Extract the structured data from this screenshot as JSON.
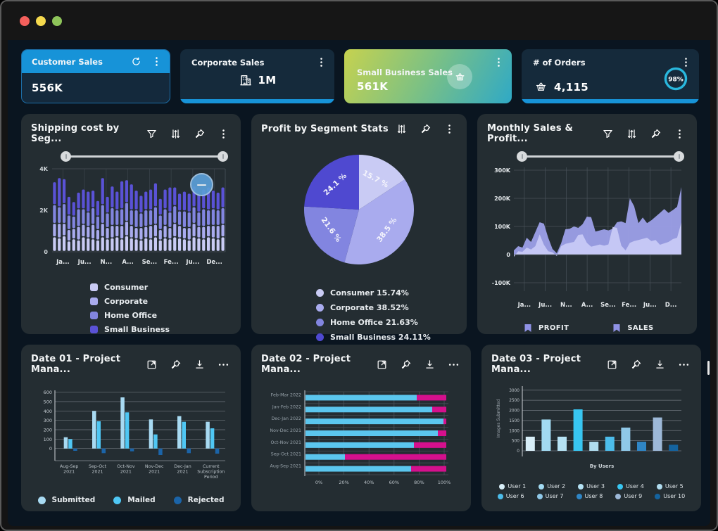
{
  "window": {
    "traffic_lights": [
      {
        "name": "close",
        "color": "#f4605c"
      },
      {
        "name": "minimize",
        "color": "#f5d94d"
      },
      {
        "name": "zoom",
        "color": "#8ec45a"
      }
    ],
    "background": "#0a1520",
    "accent_blue": "#1793d8"
  },
  "kpi": {
    "cards": [
      {
        "title": "Customer Sales",
        "value": "556K",
        "icons": [
          "recycle",
          "kebab"
        ]
      },
      {
        "title": "Corporate Sales",
        "value": "1M",
        "icons": [
          "building",
          "kebab"
        ]
      },
      {
        "title": "Small Business Sales",
        "value": "561K",
        "icons": [
          "basket",
          "kebab"
        ]
      },
      {
        "title": "# of Orders",
        "value": "4,115",
        "icons": [
          "basket",
          "kebab"
        ],
        "gauge_pct": "98%"
      }
    ]
  },
  "panels": [
    {
      "title": "Shipping cost by Seg...",
      "icons": [
        "filter",
        "sliders",
        "pin",
        "kebab"
      ],
      "has_slider": true,
      "overlay_button": "−"
    },
    {
      "title": "Profit by Segment Stats",
      "icons": [
        "sliders",
        "pin",
        "kebab"
      ],
      "has_slider": false
    },
    {
      "title": "Monthly Sales & Profit...",
      "icons": [
        "filter",
        "sliders",
        "pin",
        "kebab"
      ],
      "has_slider": true
    },
    {
      "title": "Date 01 - Project Mana...",
      "icons": [
        "expand",
        "pin",
        "download",
        "ellipsis"
      ],
      "has_slider": false
    },
    {
      "title": "Date 02 - Project Mana...",
      "icons": [
        "expand",
        "pin",
        "download",
        "ellipsis"
      ],
      "has_slider": false
    },
    {
      "title": "Date 03 - Project Mana...",
      "icons": [
        "expand",
        "pin",
        "download",
        "ellipsis"
      ],
      "has_slider": false
    }
  ],
  "chart_data": [
    {
      "id": "shipping",
      "type": "bar",
      "stacked": true,
      "title": "Shipping cost by Segment",
      "y_ticks": [
        {
          "label": "4K",
          "v": 4000
        },
        {
          "label": "2K",
          "v": 2000
        },
        {
          "label": "0",
          "v": 0
        }
      ],
      "ylim": [
        0,
        4000
      ],
      "x_labels": [
        "Ja...",
        "Ju...",
        "N...",
        "A...",
        "Se...",
        "Fe...",
        "Ju...",
        "De..."
      ],
      "series_names": [
        "Consumer",
        "Corporate",
        "Home Office",
        "Small Business"
      ],
      "colors": [
        "#c9cbf4",
        "#a9abee",
        "#8285e0",
        "#5a52d6"
      ],
      "bars": [
        [
          700,
          650,
          900,
          1100
        ],
        [
          650,
          700,
          800,
          1400
        ],
        [
          750,
          600,
          950,
          1200
        ],
        [
          500,
          550,
          700,
          900
        ],
        [
          600,
          500,
          600,
          700
        ],
        [
          550,
          650,
          850,
          800
        ],
        [
          700,
          600,
          750,
          950
        ],
        [
          650,
          550,
          700,
          1000
        ],
        [
          600,
          700,
          800,
          850
        ],
        [
          550,
          500,
          650,
          750
        ],
        [
          700,
          650,
          900,
          1300
        ],
        [
          600,
          550,
          700,
          800
        ],
        [
          650,
          600,
          850,
          1050
        ],
        [
          700,
          550,
          750,
          900
        ],
        [
          600,
          650,
          800,
          1350
        ],
        [
          750,
          700,
          900,
          1100
        ],
        [
          650,
          600,
          750,
          1250
        ],
        [
          600,
          550,
          850,
          950
        ],
        [
          550,
          600,
          700,
          850
        ],
        [
          650,
          550,
          800,
          900
        ],
        [
          600,
          650,
          750,
          1000
        ],
        [
          700,
          600,
          850,
          1150
        ],
        [
          550,
          500,
          700,
          800
        ],
        [
          650,
          600,
          800,
          950
        ],
        [
          600,
          550,
          750,
          1200
        ],
        [
          700,
          650,
          850,
          900
        ],
        [
          650,
          600,
          700,
          850
        ],
        [
          600,
          550,
          800,
          950
        ],
        [
          550,
          600,
          750,
          900
        ],
        [
          700,
          650,
          800,
          1000
        ],
        [
          650,
          550,
          700,
          850
        ],
        [
          600,
          600,
          850,
          950
        ],
        [
          700,
          550,
          750,
          1100
        ],
        [
          650,
          600,
          800,
          900
        ],
        [
          600,
          650,
          750,
          850
        ],
        [
          700,
          600,
          800,
          1000
        ]
      ],
      "legend": [
        {
          "label": "Consumer",
          "color": "#c9cbf4"
        },
        {
          "label": "Corporate",
          "color": "#a9abee"
        },
        {
          "label": "Home Office",
          "color": "#8285e0"
        },
        {
          "label": "Small Business",
          "color": "#5a52d6"
        }
      ]
    },
    {
      "id": "profit_pie",
      "type": "pie",
      "title": "Profit by Segment Stats",
      "values": [
        15.74,
        38.52,
        21.63,
        24.11
      ],
      "slice_labels": [
        "15.7 %",
        "38.5 %",
        "21.6 %",
        "24.1 %"
      ],
      "colors": [
        "#c9cbf4",
        "#a9abee",
        "#8285e0",
        "#4f49d0"
      ],
      "legend": [
        {
          "label": "Consumer",
          "value": "15.74%",
          "color": "#c9cbf4"
        },
        {
          "label": "Corporate",
          "value": "38.52%",
          "color": "#a9abee"
        },
        {
          "label": "Home Office",
          "value": "21.63%",
          "color": "#8285e0"
        },
        {
          "label": "Small Business",
          "value": "24.11%",
          "color": "#4f49d0"
        }
      ]
    },
    {
      "id": "monthly",
      "type": "area",
      "title": "Monthly Sales & Profit",
      "y_ticks": [
        {
          "label": "300K",
          "v": 300
        },
        {
          "label": "200K",
          "v": 200
        },
        {
          "label": "100K",
          "v": 100
        },
        {
          "label": "0",
          "v": 0
        },
        {
          "label": "-100K",
          "v": -100
        }
      ],
      "ylim": [
        -130,
        310
      ],
      "x_labels": [
        "Ja...",
        "Ju...",
        "N...",
        "A...",
        "Se...",
        "Fe...",
        "Ju...",
        "D..."
      ],
      "series": [
        {
          "name": "SALES",
          "color": "#9da0e9",
          "values": [
            15,
            30,
            25,
            60,
            45,
            80,
            115,
            110,
            60,
            20,
            5,
            40,
            90,
            92,
            100,
            95,
            108,
            135,
            133,
            82,
            86,
            90,
            86,
            92,
            115,
            118,
            112,
            200,
            172,
            112,
            132,
            112,
            122,
            135,
            148,
            162,
            148,
            158,
            170,
            240
          ]
        },
        {
          "name": "PROFIT",
          "color": "#c7c9f6",
          "values": [
            -8,
            12,
            10,
            25,
            18,
            30,
            72,
            35,
            12,
            8,
            -5,
            30,
            38,
            42,
            45,
            70,
            72,
            42,
            28,
            32,
            36,
            32,
            36,
            98,
            95,
            32,
            15,
            42,
            48,
            52,
            56,
            60,
            48,
            52,
            35,
            40,
            45,
            55,
            60,
            115
          ]
        }
      ],
      "legend": [
        {
          "label": "PROFIT",
          "color": "#8f92e6"
        },
        {
          "label": "SALES",
          "color": "#8f92e6"
        }
      ]
    },
    {
      "id": "date01",
      "type": "bar",
      "grouped": true,
      "title": "Date 01 - Project Management",
      "y_ticks": [
        0,
        100,
        200,
        300,
        400,
        500,
        600
      ],
      "ylim": [
        -100,
        620
      ],
      "categories": [
        [
          "Aug-Sep",
          "2021"
        ],
        [
          "Sep-Oct",
          "2021"
        ],
        [
          "Oct-Nov",
          "2021"
        ],
        [
          "Nov-Dec",
          "2021"
        ],
        [
          "Dec-Jan",
          "2021"
        ],
        [
          "Current",
          "Subscription",
          "Period"
        ]
      ],
      "series": [
        {
          "name": "Submitted",
          "color": "#a8daf2",
          "values": [
            120,
            400,
            545,
            310,
            345,
            285
          ]
        },
        {
          "name": "Mailed",
          "color": "#4fc7f4",
          "values": [
            100,
            290,
            385,
            150,
            285,
            215
          ]
        },
        {
          "name": "Rejected",
          "color": "#1b64a8",
          "values": [
            -25,
            -50,
            -30,
            -70,
            -50,
            -55
          ]
        }
      ],
      "legend": [
        {
          "label": "Submitted",
          "color": "#a8daf2"
        },
        {
          "label": "Mailed",
          "color": "#4fc7f4"
        },
        {
          "label": "Rejected",
          "color": "#1b64a8"
        }
      ]
    },
    {
      "id": "date02",
      "type": "bar",
      "horizontal": true,
      "stacked": true,
      "title": "Date 02 - Project Management",
      "categories": [
        "Feb-Mar 2022",
        "Jan-Feb 2022",
        "Dec-Jan 2022",
        "Nov-Dec 2021",
        "Oct-Nov 2021",
        "Sep-Oct 2021",
        "Aug-Sep 2021"
      ],
      "x_ticks": [
        "0%",
        "20%",
        "40%",
        "60%",
        "80%",
        "100%"
      ],
      "series": [
        {
          "color": "#5bc6ee",
          "values": [
            79,
            90,
            98,
            94,
            77,
            28,
            75
          ]
        },
        {
          "color": "#d5108d",
          "values": [
            21,
            10,
            2,
            6,
            23,
            72,
            25
          ]
        }
      ]
    },
    {
      "id": "date03",
      "type": "bar",
      "title": "Date 03 - Project Management",
      "ylabel": "Images Submitted",
      "xlabel": "By Users",
      "y_ticks": [
        0,
        500,
        1000,
        1500,
        2000,
        2500,
        3000
      ],
      "ylim": [
        0,
        3200
      ],
      "categories": [
        "User 1",
        "User 2",
        "User 3",
        "User 4",
        "User 5",
        "User 6",
        "User 7",
        "User 8",
        "User 9",
        "User 10"
      ],
      "values": [
        700,
        1550,
        700,
        2050,
        450,
        700,
        1150,
        450,
        1650,
        300
      ],
      "colors": [
        "#d8eef8",
        "#a2daf2",
        "#b5e2f4",
        "#38c6f2",
        "#b0dcef",
        "#4cbcea",
        "#8fc8e8",
        "#2f86c6",
        "#9db8d8",
        "#14639f"
      ],
      "legend": [
        {
          "label": "User 1",
          "color": "#d8eef8"
        },
        {
          "label": "User 2",
          "color": "#a2daf2"
        },
        {
          "label": "User 3",
          "color": "#b5e2f4"
        },
        {
          "label": "User 4",
          "color": "#38c6f2"
        },
        {
          "label": "User 5",
          "color": "#b0dcef"
        },
        {
          "label": "User 6",
          "color": "#4cbcea"
        },
        {
          "label": "User 7",
          "color": "#8fc8e8"
        },
        {
          "label": "User 8",
          "color": "#2f86c6"
        },
        {
          "label": "User 9",
          "color": "#9db8d8"
        },
        {
          "label": "User 10",
          "color": "#14639f"
        }
      ]
    }
  ]
}
